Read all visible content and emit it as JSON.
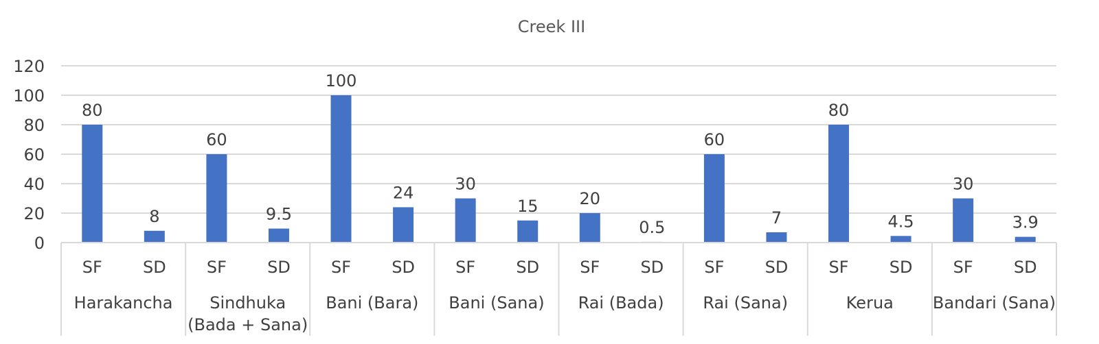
{
  "chart_data": {
    "type": "bar",
    "title": "Creek III",
    "xlabel": "",
    "ylabel": "",
    "ylim": [
      0,
      120
    ],
    "yticks": [
      0,
      20,
      40,
      60,
      80,
      100,
      120
    ],
    "grid": true,
    "legend": "none",
    "bar_color": "#4472c4",
    "groups": [
      {
        "label": [
          "Harakancha"
        ],
        "items": [
          {
            "category": "SF",
            "value": 80,
            "value_label": "80"
          },
          {
            "category": "SD",
            "value": 8,
            "value_label": "8"
          }
        ]
      },
      {
        "label": [
          "Sindhuka",
          "(Bada + Sana)"
        ],
        "items": [
          {
            "category": "SF",
            "value": 60,
            "value_label": "60"
          },
          {
            "category": "SD",
            "value": 9.5,
            "value_label": "9.5"
          }
        ]
      },
      {
        "label": [
          "Bani (Bara)"
        ],
        "items": [
          {
            "category": "SF",
            "value": 100,
            "value_label": "100"
          },
          {
            "category": "SD",
            "value": 24,
            "value_label": "24"
          }
        ]
      },
      {
        "label": [
          "Bani (Sana)"
        ],
        "items": [
          {
            "category": "SF",
            "value": 30,
            "value_label": "30"
          },
          {
            "category": "SD",
            "value": 15,
            "value_label": "15"
          }
        ]
      },
      {
        "label": [
          "Rai (Bada)"
        ],
        "items": [
          {
            "category": "SF",
            "value": 20,
            "value_label": "20"
          },
          {
            "category": "SD",
            "value": 0.5,
            "value_label": "0.5"
          }
        ]
      },
      {
        "label": [
          "Rai (Sana)"
        ],
        "items": [
          {
            "category": "SF",
            "value": 60,
            "value_label": "60"
          },
          {
            "category": "SD",
            "value": 7,
            "value_label": "7"
          }
        ]
      },
      {
        "label": [
          "Kerua"
        ],
        "items": [
          {
            "category": "SF",
            "value": 80,
            "value_label": "80"
          },
          {
            "category": "SD",
            "value": 4.5,
            "value_label": "4.5"
          }
        ]
      },
      {
        "label": [
          "Bandari (Sana)"
        ],
        "items": [
          {
            "category": "SF",
            "value": 30,
            "value_label": "30"
          },
          {
            "category": "SD",
            "value": 3.9,
            "value_label": "3.9"
          }
        ]
      }
    ]
  }
}
